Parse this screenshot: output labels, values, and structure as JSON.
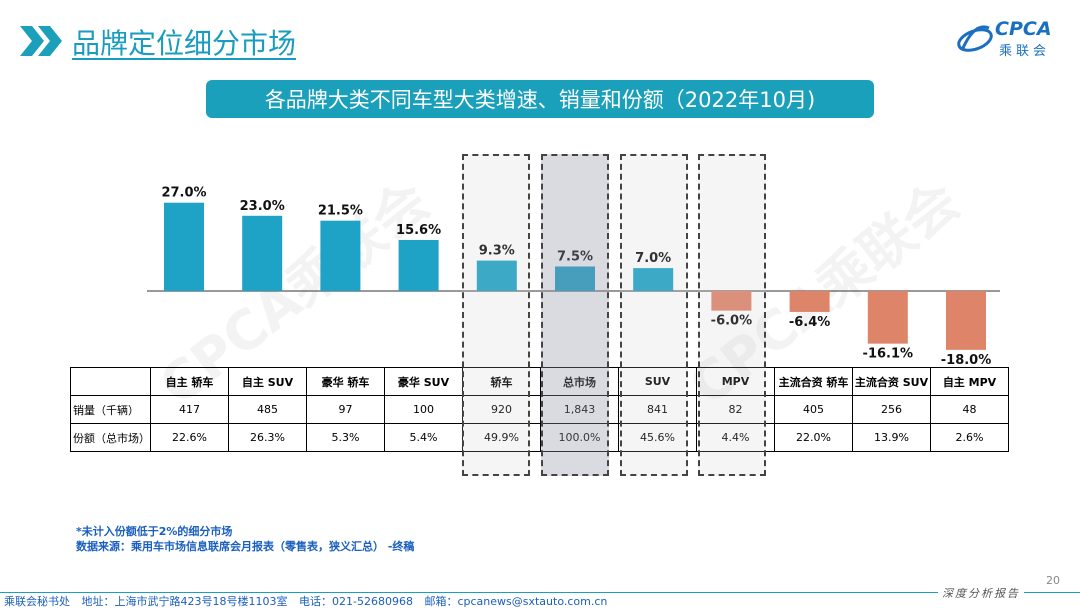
{
  "header": {
    "title": "品牌定位细分市场",
    "subtitle": "各品牌大类不同车型大类增速、销量和份额（2022年10月)"
  },
  "logo": {
    "main": "CPCA",
    "sub": "乘联会"
  },
  "watermark": "CPCA乘联会",
  "chart_data": {
    "type": "bar",
    "categories": [
      "自主 轿车",
      "自主 SUV",
      "豪华 轿车",
      "豪华 SUV",
      "轿车",
      "总市场",
      "SUV",
      "MPV",
      "主流合资 轿车",
      "主流合资 SUV",
      "自主 MPV"
    ],
    "values": [
      27.0,
      23.0,
      21.5,
      15.6,
      9.3,
      7.5,
      7.0,
      -6.0,
      -6.4,
      -16.1,
      -18.0
    ],
    "value_labels": [
      "27.0%",
      "23.0%",
      "21.5%",
      "15.6%",
      "9.3%",
      "7.5%",
      "7.0%",
      "-6.0%",
      "-6.4%",
      "-16.1%",
      "-18.0%"
    ],
    "colors": {
      "positive": "#1ea3c6",
      "negative": "#de8468"
    },
    "highlighted": [
      "轿车",
      "总市场",
      "SUV",
      "MPV"
    ],
    "title": "",
    "xlabel": "",
    "ylabel": ""
  },
  "table": {
    "row_labels": [
      "销量（千辆）",
      "份额（总市场）"
    ],
    "sales": [
      "417",
      "485",
      "97",
      "100",
      "920",
      "1,843",
      "841",
      "82",
      "405",
      "256",
      "48"
    ],
    "share": [
      "22.6%",
      "26.3%",
      "5.3%",
      "5.4%",
      "49.9%",
      "100.0%",
      "45.6%",
      "4.4%",
      "22.0%",
      "13.9%",
      "2.6%"
    ]
  },
  "notes": {
    "line1": "*未计入份额低于2%的细分市场",
    "line2": "数据来源：乘用车市场信息联席会月报表（零售表，狭义汇总） -终稿"
  },
  "footer": {
    "org": "乘联会秘书处",
    "address": "地址：上海市武宁路423号18号楼1103室",
    "phone": "电话：021-52680968",
    "email": "邮箱：cpcanews@sxtauto.com.cn",
    "tagline": "深度分析报告",
    "page": "20"
  },
  "colors": {
    "accent": "#1aa0ba",
    "title": "#1a9cc0",
    "notes": "#1a5fbf"
  }
}
